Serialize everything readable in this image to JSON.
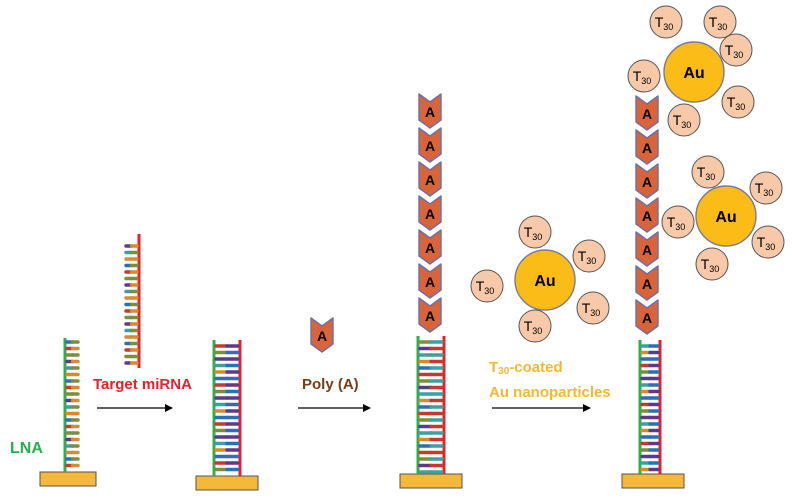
{
  "labels": {
    "lna": "LNA",
    "target_mirna": "Target miRNA",
    "poly_a": "Poly (A)",
    "t30_prefix": "T",
    "t30_sub": "30",
    "t30_suffix": "-coated",
    "au_nanoparticles": "Au nanoparticles"
  },
  "monomer_letter": "A",
  "gold_letter": "Au",
  "ligand": {
    "letter": "T",
    "subscript": "30"
  },
  "colors": {
    "lna_strand": "#2db04a",
    "mirna_strand": "#e8202a",
    "lna_text": "#22b14c",
    "target_text": "#e8202a",
    "polyA_text": "#7a3e16",
    "t30_text": "#f5b82e",
    "chevron_fill": "#d9643a",
    "chevron_stroke": "#6b6fa8",
    "gold_fill": "#fbbc17",
    "gold_stroke": "#7a7a9a",
    "ligand_fill": "#f7c9a8",
    "ligand_stroke": "#555555",
    "base_fill": "#f4b93a",
    "base_stroke": "#555555",
    "base_pair_colors": [
      "#2c6fb7",
      "#c53a2d",
      "#7a8f3a",
      "#5b3a8a",
      "#3aa0a0",
      "#d98a2b"
    ]
  }
}
